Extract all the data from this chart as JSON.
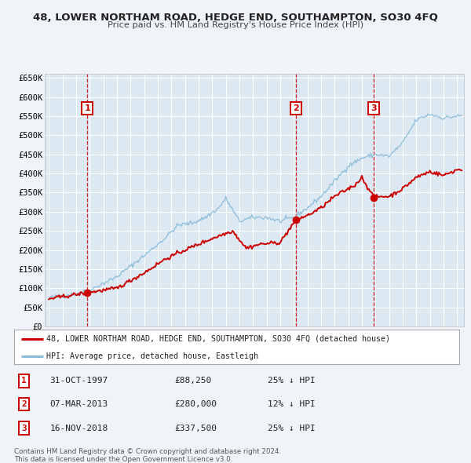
{
  "title": "48, LOWER NORTHAM ROAD, HEDGE END, SOUTHAMPTON, SO30 4FQ",
  "subtitle": "Price paid vs. HM Land Registry's House Price Index (HPI)",
  "legend_line1": "48, LOWER NORTHAM ROAD, HEDGE END, SOUTHAMPTON, SO30 4FQ (detached house)",
  "legend_line2": "HPI: Average price, detached house, Eastleigh",
  "red_line_color": "#cc0000",
  "blue_line_color": "#8bbcda",
  "background_color": "#f0f4f8",
  "plot_bg_color": "#dce8f2",
  "grid_color": "#ffffff",
  "transactions": [
    {
      "num": 1,
      "date": "31-OCT-1997",
      "price": 88250,
      "year": 1997.83,
      "pct": "25% ↓ HPI"
    },
    {
      "num": 2,
      "date": "07-MAR-2013",
      "price": 280000,
      "year": 2013.18,
      "pct": "12% ↓ HPI"
    },
    {
      "num": 3,
      "date": "16-NOV-2018",
      "price": 337500,
      "year": 2018.87,
      "pct": "25% ↓ HPI"
    }
  ],
  "footer1": "Contains HM Land Registry data © Crown copyright and database right 2024.",
  "footer2": "This data is licensed under the Open Government Licence v3.0.",
  "ylim": [
    0,
    660000
  ],
  "yticks": [
    0,
    50000,
    100000,
    150000,
    200000,
    250000,
    300000,
    350000,
    400000,
    450000,
    500000,
    550000,
    600000,
    650000
  ],
  "ytick_labels": [
    "£0",
    "£50K",
    "£100K",
    "£150K",
    "£200K",
    "£250K",
    "£300K",
    "£350K",
    "£400K",
    "£450K",
    "£500K",
    "£550K",
    "£600K",
    "£650K"
  ],
  "xlim_start": 1994.7,
  "xlim_end": 2025.5,
  "hpi_anchors_years": [
    1995.0,
    1997.0,
    1998.0,
    2000.0,
    2002.0,
    2003.5,
    2004.5,
    2005.5,
    2006.5,
    2007.5,
    2008.0,
    2009.0,
    2010.0,
    2011.0,
    2012.0,
    2013.0,
    2014.0,
    2015.0,
    2016.0,
    2017.0,
    2018.0,
    2019.0,
    2020.0,
    2021.0,
    2022.0,
    2023.0,
    2024.0,
    2025.0
  ],
  "hpi_anchors_vals": [
    75000,
    85000,
    95000,
    130000,
    185000,
    230000,
    265000,
    270000,
    285000,
    310000,
    335000,
    275000,
    285000,
    285000,
    275000,
    285000,
    310000,
    340000,
    380000,
    420000,
    440000,
    450000,
    445000,
    480000,
    540000,
    555000,
    545000,
    550000
  ],
  "red_anchors_years": [
    1995.0,
    1997.83,
    2000.0,
    2002.0,
    2003.5,
    2005.0,
    2007.0,
    2008.5,
    2009.5,
    2010.5,
    2012.0,
    2013.18,
    2014.0,
    2015.0,
    2016.0,
    2017.5,
    2018.0,
    2018.87,
    2019.5,
    2020.0,
    2021.0,
    2022.0,
    2023.0,
    2024.0,
    2025.0
  ],
  "red_anchors_vals": [
    72000,
    88250,
    100000,
    140000,
    175000,
    200000,
    230000,
    250000,
    205000,
    215000,
    220000,
    280000,
    290000,
    310000,
    340000,
    370000,
    390000,
    337500,
    340000,
    340000,
    360000,
    390000,
    405000,
    395000,
    410000
  ]
}
